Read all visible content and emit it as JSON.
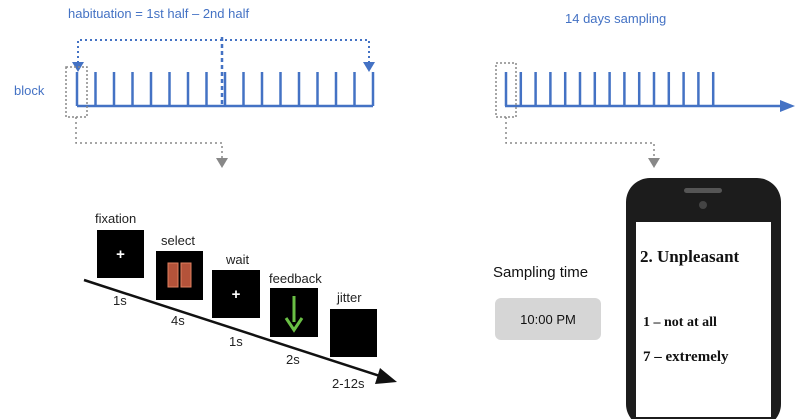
{
  "header": {
    "habituation_prefix": "habituation = 1st half",
    "habituation_dash": "–",
    "habituation_suffix": "2nd half",
    "sampling_title": "14 days sampling"
  },
  "block_label": "block",
  "trial": {
    "events": [
      {
        "label": "fixation",
        "duration": "1s",
        "symbol": "+"
      },
      {
        "label": "select",
        "duration": "4s",
        "symbol": ""
      },
      {
        "label": "wait",
        "duration": "1s",
        "symbol": "+"
      },
      {
        "label": "feedback",
        "duration": "2s",
        "symbol": ""
      },
      {
        "label": "jitter",
        "duration": "2-12s",
        "symbol": ""
      }
    ]
  },
  "sampling": {
    "label": "Sampling time",
    "time": "10:00 PM"
  },
  "phone": {
    "question": "2. Unpleasant",
    "scale_low": "1 – not at all",
    "scale_high": "7 – extremely"
  },
  "colors": {
    "blue": "#4472c4",
    "gray": "#888888",
    "green": "#6abf45",
    "card_brown": "#b4533a"
  }
}
